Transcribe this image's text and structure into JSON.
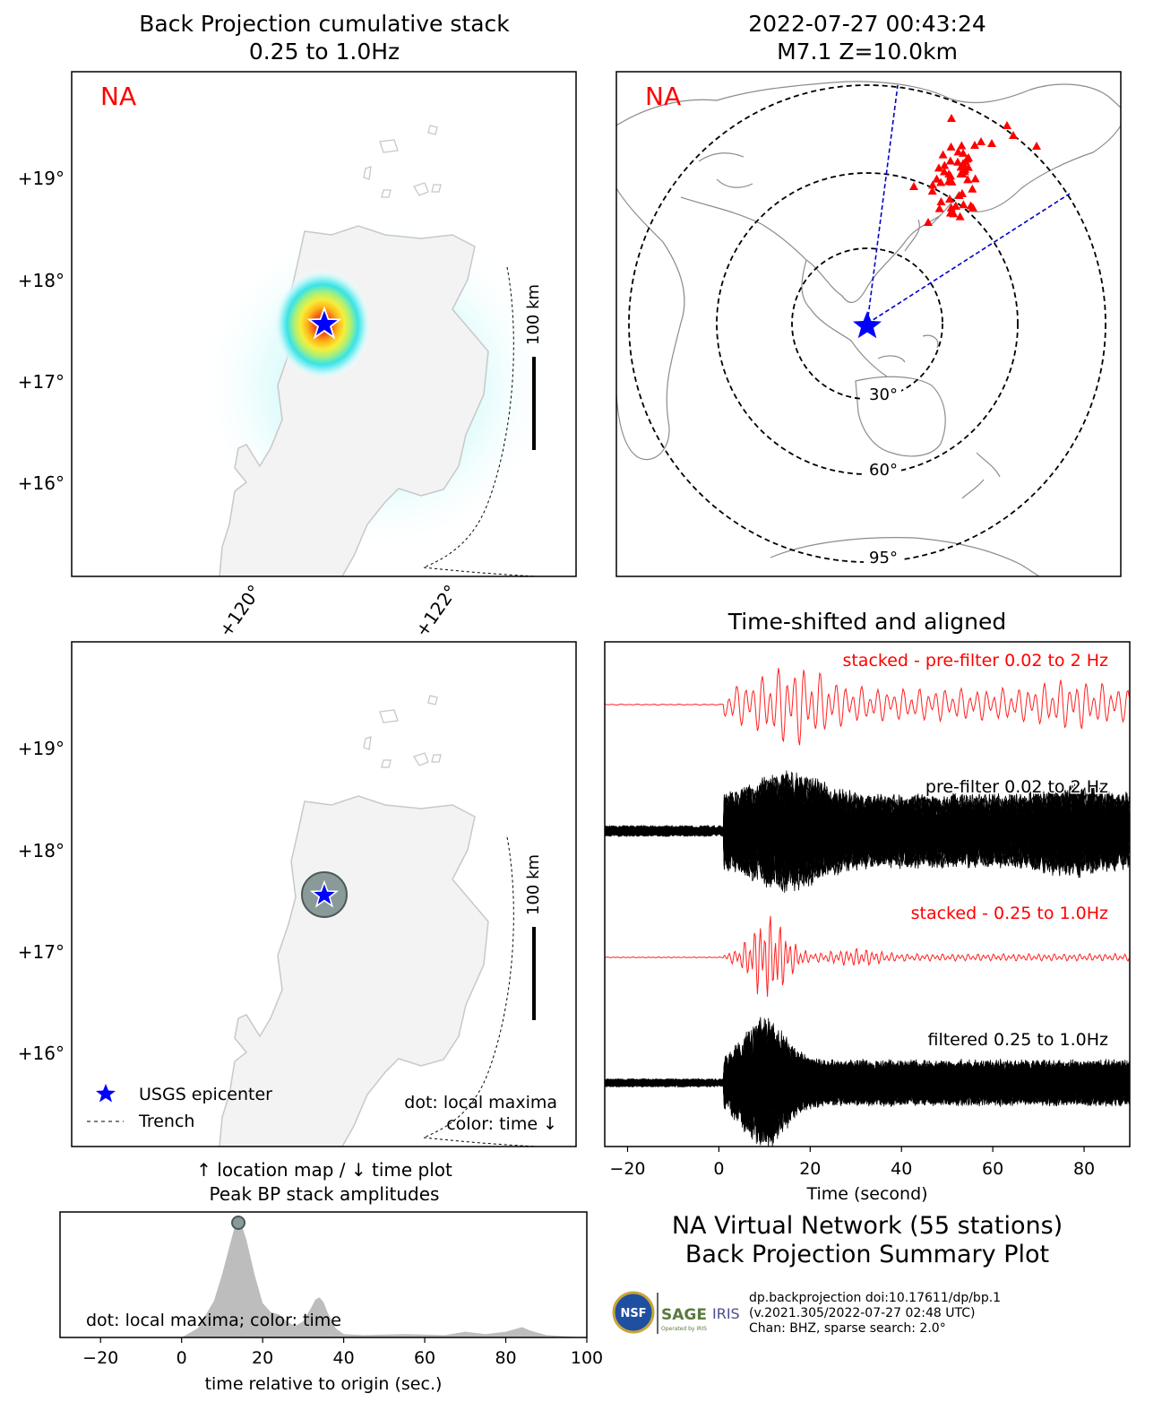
{
  "colors": {
    "label_red": "#ff0000",
    "epicenter_blue": "#0000ff",
    "station_red": "#ff0000",
    "land": "#f3f3f3",
    "coast": "#c8c8c8",
    "wave_black": "#000000",
    "wave_red": "#ff2020",
    "area_gray": "#bdbdbd",
    "dot_gray": "#8a9a98",
    "great_circle": "#0000cc"
  },
  "icons": [
    "star-icon",
    "triangle-icon",
    "nsf-logo",
    "sage-logo",
    "iris-logo"
  ],
  "bp_stack_map": {
    "title_line1": "Back Projection cumulative stack",
    "title_line2": "0.25 to 1.0Hz",
    "network_label": "NA",
    "lat_ticks": [
      "+19°",
      "+18°",
      "+17°",
      "+16°"
    ],
    "lon_ticks": [
      "+120°",
      "+122°"
    ],
    "scale_label": "100 km"
  },
  "event_map": {
    "title_line1": "2022-07-27 00:43:24",
    "title_line2": "M7.1 Z=10.0km",
    "network_label": "NA",
    "ring_labels": [
      "30°",
      "60°",
      "95°"
    ]
  },
  "location_map": {
    "lat_ticks": [
      "+19°",
      "+18°",
      "+17°",
      "+16°"
    ],
    "scale_label": "100 km",
    "legend_epicenter": "USGS epicenter",
    "legend_trench": "Trench",
    "note_line1": "dot: local maxima",
    "note_line2": "color: time ↓",
    "caption_line1": "↑ location map / ↓ time plot",
    "caption_line2": "Peak BP stack amplitudes"
  },
  "summary": {
    "title_line1": "NA Virtual Network (55 stations)",
    "title_line2": "Back Projection Summary Plot",
    "credit_line1": "dp.backprojection doi:10.17611/dp/bp.1",
    "credit_line2": "(v.2021.305/2022-07-27 02:48 UTC)",
    "credit_line3": "Chan: BHZ, sparse search: 2.0°",
    "logo_nsf": "NSF",
    "logo_sage": "SAGE",
    "logo_sage_sub": "Operated by IRIS",
    "logo_iris": "IRIS"
  },
  "chart_data": [
    {
      "type": "line",
      "title": "Time-shifted and aligned",
      "xlabel": "Time (second)",
      "ylabel": "",
      "xlim": [
        -25,
        90
      ],
      "xticks": [
        -20,
        0,
        20,
        40,
        60,
        80
      ],
      "grid": false,
      "series": [
        {
          "name": "stacked - pre-filter 0.02 to 2 Hz",
          "color": "red",
          "onset": 1,
          "amplitude": "normalized"
        },
        {
          "name": "pre-filter 0.02 to 2 Hz",
          "color": "black",
          "traces": 55,
          "onset": 1,
          "amplitude": "normalized"
        },
        {
          "name": "stacked - 0.25 to 1.0Hz",
          "color": "red",
          "onset": 1,
          "amplitude": "normalized"
        },
        {
          "name": "filtered 0.25 to 1.0Hz",
          "color": "black",
          "traces": 55,
          "onset": 1,
          "amplitude": "normalized"
        }
      ]
    },
    {
      "type": "area",
      "title": "",
      "xlabel": "time relative to origin (sec.)",
      "ylabel": "",
      "xlim": [
        -30,
        100
      ],
      "xticks": [
        -20,
        0,
        20,
        40,
        60,
        80,
        100
      ],
      "annotation": "dot: local maxima; color: time",
      "x": [
        -30,
        0,
        4,
        8,
        10,
        12,
        13,
        14,
        15,
        16,
        18,
        20,
        22,
        24,
        26,
        28,
        30,
        32,
        33,
        34,
        35,
        36,
        38,
        40,
        45,
        55,
        65,
        70,
        75,
        80,
        84,
        86,
        90,
        95,
        100
      ],
      "y": [
        0,
        0,
        0.08,
        0.32,
        0.55,
        0.82,
        0.95,
        1.0,
        0.96,
        0.85,
        0.55,
        0.3,
        0.22,
        0.2,
        0.14,
        0.1,
        0.14,
        0.26,
        0.33,
        0.35,
        0.31,
        0.22,
        0.08,
        0.03,
        0.02,
        0.03,
        0.02,
        0.05,
        0.03,
        0.05,
        0.09,
        0.06,
        0.02,
        0.01,
        0
      ],
      "peak": {
        "x": 14,
        "y": 1.0
      }
    }
  ]
}
